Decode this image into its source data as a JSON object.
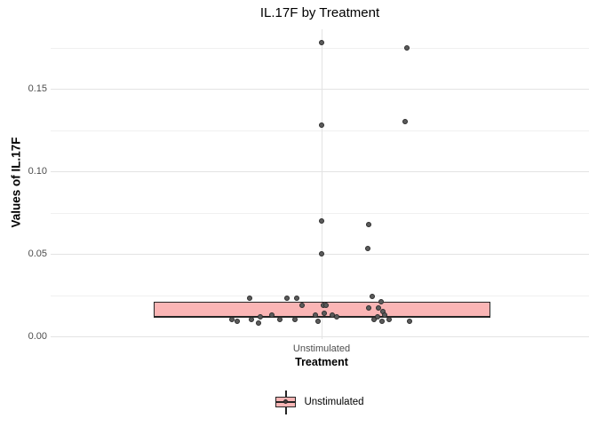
{
  "title": "IL.17F by Treatment",
  "y_axis": {
    "label": "Values of IL.17F",
    "tick_labels": [
      "0.00",
      "0.05",
      "0.10",
      "0.15"
    ]
  },
  "x_axis": {
    "label": "Treatment",
    "tick_labels": [
      "Unstimulated"
    ]
  },
  "legend": {
    "position": "bottom",
    "items": [
      {
        "label": "Unstimulated",
        "fill": "#FAB5B5"
      }
    ]
  },
  "colors": {
    "box_fill": "#FAB5B5",
    "box_border": "#252525",
    "point_fill": "#5B5B5B",
    "point_border": "#2C2C2C",
    "grid_major": "#E3E3E3",
    "grid_minor": "#F0F0F0",
    "tick_text": "#4D4D4D",
    "title_text": "#000000"
  },
  "chart_data": {
    "type": "boxplot",
    "subtype": "boxplot-with-jittered-points",
    "title": "IL.17F by Treatment",
    "xlabel": "Treatment",
    "ylabel": "Values of IL.17F",
    "categories": [
      "Unstimulated"
    ],
    "ylim": [
      -0.009,
      0.189
    ],
    "y_major_ticks": [
      0,
      0.05,
      0.1,
      0.15
    ],
    "y_minor_ticks": [
      0.025,
      0.075,
      0.125,
      0.175
    ],
    "grid": true,
    "legend_position": "bottom",
    "series": [
      {
        "name": "Unstimulated",
        "box": {
          "lower_hinge": 0.012,
          "median": 0.012,
          "upper_hinge": 0.021
        },
        "jitter_points": [
          {
            "dx": 0,
            "value": 0.178
          },
          {
            "dx": 96,
            "value": 0.175
          },
          {
            "dx": 0,
            "value": 0.128
          },
          {
            "dx": 94,
            "value": 0.13
          },
          {
            "dx": 0,
            "value": 0.07
          },
          {
            "dx": 53,
            "value": 0.068
          },
          {
            "dx": 0,
            "value": 0.05
          },
          {
            "dx": 52,
            "value": 0.053
          },
          {
            "dx": -81,
            "value": 0.023
          },
          {
            "dx": -39,
            "value": 0.023
          },
          {
            "dx": -28,
            "value": 0.023
          },
          {
            "dx": -22,
            "value": 0.019
          },
          {
            "dx": 2,
            "value": 0.019
          },
          {
            "dx": 5,
            "value": 0.019
          },
          {
            "dx": 57,
            "value": 0.024
          },
          {
            "dx": 67,
            "value": 0.021
          },
          {
            "dx": 53,
            "value": 0.017
          },
          {
            "dx": 64,
            "value": 0.017
          },
          {
            "dx": -7,
            "value": 0.013
          },
          {
            "dx": 3,
            "value": 0.014
          },
          {
            "dx": 12,
            "value": 0.013
          },
          {
            "dx": 17,
            "value": 0.012
          },
          {
            "dx": -56,
            "value": 0.013
          },
          {
            "dx": -69,
            "value": 0.012
          },
          {
            "dx": -101,
            "value": 0.01
          },
          {
            "dx": -95,
            "value": 0.009
          },
          {
            "dx": -79,
            "value": 0.01
          },
          {
            "dx": -71,
            "value": 0.008
          },
          {
            "dx": -47,
            "value": 0.01
          },
          {
            "dx": -30,
            "value": 0.01
          },
          {
            "dx": -4,
            "value": 0.009
          },
          {
            "dx": 59,
            "value": 0.01
          },
          {
            "dx": 63,
            "value": 0.012
          },
          {
            "dx": 69,
            "value": 0.015
          },
          {
            "dx": 71,
            "value": 0.013
          },
          {
            "dx": 68,
            "value": 0.009
          },
          {
            "dx": 76,
            "value": 0.01
          },
          {
            "dx": 99,
            "value": 0.009
          }
        ]
      }
    ]
  }
}
